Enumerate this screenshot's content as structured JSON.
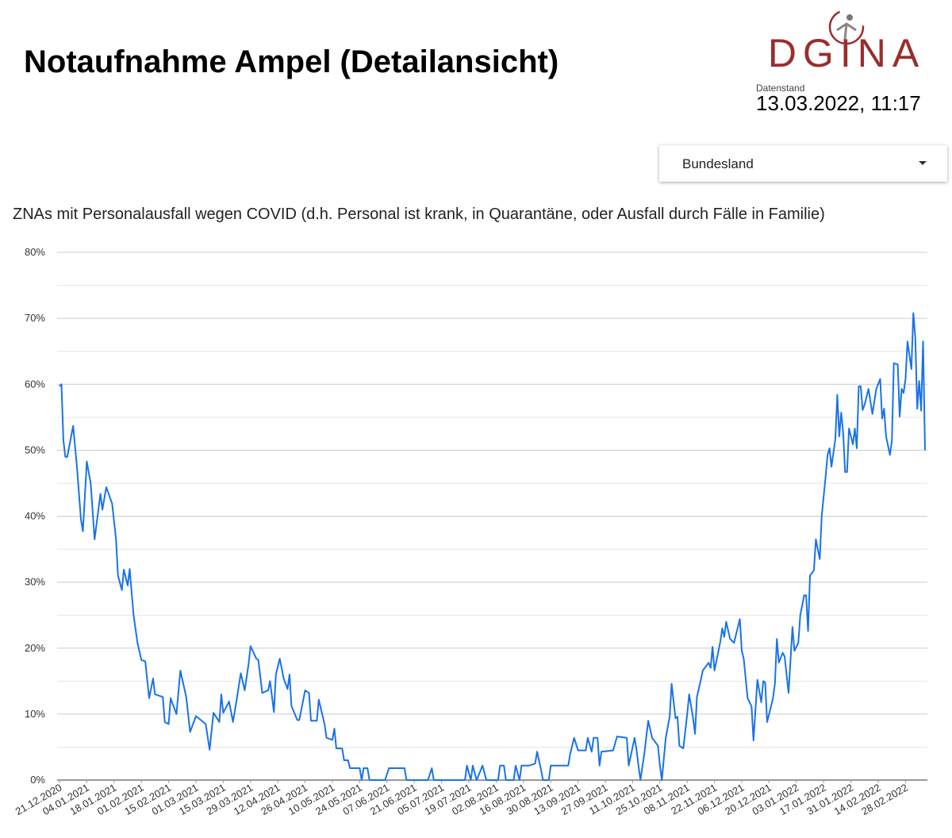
{
  "header": {
    "title": "Notaufnahme Ampel (Detailansicht)",
    "logo": "DGINA",
    "stand_label": "Datenstand",
    "stand_value": "13.03.2022, 11:17"
  },
  "filter": {
    "label": "Bundesland"
  },
  "chart_data": {
    "type": "line",
    "title": "ZNAs mit Personalausfall wegen COVID (d.h. Personal ist krank, in Quarantäne, oder Ausfall durch Fälle in Familie)",
    "xlim": [
      "21.12.2020",
      "10.03.2022"
    ],
    "xticks": [
      "21.12.2020",
      "04.01.2021",
      "18.01.2021",
      "01.02.2021",
      "15.02.2021",
      "01.03.2021",
      "15.03.2021",
      "29.03.2021",
      "12.04.2021",
      "26.04.2021",
      "10.05.2021",
      "24.05.2021",
      "07.06.2021",
      "21.06.2021",
      "05.07.2021",
      "19.07.2021",
      "02.08.2021",
      "16.08.2021",
      "30.08.2021",
      "13.09.2021",
      "27.09.2021",
      "11.10.2021",
      "25.10.2021",
      "08.11.2021",
      "22.11.2021",
      "06.12.2021",
      "20.12.2021",
      "03.01.2022",
      "17.01.2022",
      "31.01.2022",
      "14.02.2022",
      "28.02.2022"
    ],
    "ylim": [
      0,
      80
    ],
    "yticks": [
      {
        "value": 0,
        "label": "0%"
      },
      {
        "value": 10,
        "label": "10%"
      },
      {
        "value": 20,
        "label": "20%"
      },
      {
        "value": 30,
        "label": "30%"
      },
      {
        "value": 40,
        "label": "40%"
      },
      {
        "value": 50,
        "label": "50%"
      },
      {
        "value": 60,
        "label": "60%"
      },
      {
        "value": 70,
        "label": "70%"
      },
      {
        "value": 80,
        "label": "80%"
      }
    ],
    "yminor": [
      5,
      15,
      25,
      35,
      45,
      55,
      65,
      75
    ],
    "grid": true,
    "color": "#1a73e8",
    "x": [
      "21.12.2020",
      "22.12.2020",
      "23.12.2020",
      "24.12.2020",
      "25.12.2020",
      "28.12.2020",
      "30.12.2020",
      "01.01.2021",
      "02.01.2021",
      "04.01.2021",
      "06.01.2021",
      "08.01.2021",
      "11.01.2021",
      "12.01.2021",
      "14.01.2021",
      "17.01.2021",
      "19.01.2021",
      "20.01.2021",
      "22.01.2021",
      "23.01.2021",
      "25.01.2021",
      "26.01.2021",
      "28.01.2021",
      "30.01.2021",
      "01.02.2021",
      "03.02.2021",
      "05.02.2021",
      "07.02.2021",
      "08.02.2021",
      "12.02.2021",
      "13.02.2021",
      "15.02.2021",
      "16.02.2021",
      "19.02.2021",
      "21.02.2021",
      "24.02.2021",
      "26.02.2021",
      "01.03.2021",
      "06.03.2021",
      "08.03.2021",
      "10.03.2021",
      "13.03.2021",
      "14.03.2021",
      "15.03.2021",
      "18.03.2021",
      "20.03.2021",
      "22.03.2021",
      "24.03.2021",
      "26.03.2021",
      "28.03.2021",
      "29.03.2021",
      "01.04.2021",
      "02.04.2021",
      "04.04.2021",
      "07.04.2021",
      "08.04.2021",
      "10.04.2021",
      "11.04.2021",
      "13.04.2021",
      "15.04.2021",
      "17.04.2021",
      "18.04.2021",
      "19.04.2021",
      "22.04.2021",
      "23.04.2021",
      "26.04.2021",
      "28.04.2021",
      "29.04.2021",
      "02.05.2021",
      "03.05.2021",
      "06.05.2021",
      "07.05.2021",
      "10.05.2021",
      "11.05.2021",
      "12.05.2021",
      "15.05.2021",
      "16.05.2021",
      "18.05.2021",
      "19.05.2021",
      "24.05.2021",
      "25.05.2021",
      "26.05.2021",
      "28.05.2021",
      "29.05.2021",
      "06.06.2021",
      "08.06.2021",
      "16.06.2021",
      "17.06.2021",
      "28.06.2021",
      "30.06.2021",
      "01.07.2021",
      "17.07.2021",
      "18.07.2021",
      "20.07.2021",
      "21.07.2021",
      "23.07.2021",
      "26.07.2021",
      "28.07.2021",
      "03.08.2021",
      "04.08.2021",
      "06.08.2021",
      "07.08.2021",
      "11.08.2021",
      "12.08.2021",
      "14.08.2021",
      "15.08.2021",
      "19.08.2021",
      "22.08.2021",
      "23.08.2021",
      "25.08.2021",
      "26.08.2021",
      "29.08.2021",
      "30.08.2021",
      "08.09.2021",
      "09.09.2021",
      "11.09.2021",
      "13.09.2021",
      "17.09.2021",
      "18.09.2021",
      "20.09.2021",
      "21.09.2021",
      "23.09.2021",
      "24.09.2021",
      "25.09.2021",
      "01.10.2021",
      "03.10.2021",
      "08.10.2021",
      "09.10.2021",
      "12.10.2021",
      "13.10.2021",
      "14.10.2021",
      "15.10.2021",
      "17.10.2021",
      "19.10.2021",
      "21.10.2021",
      "24.10.2021",
      "25.10.2021",
      "26.10.2021",
      "28.10.2021",
      "30.10.2021",
      "31.10.2021",
      "02.11.2021",
      "03.11.2021",
      "04.11.2021",
      "06.11.2021",
      "08.11.2021",
      "09.11.2021",
      "11.11.2021",
      "12.11.2021",
      "13.11.2021",
      "15.11.2021",
      "16.11.2021",
      "19.11.2021",
      "20.11.2021",
      "21.11.2021",
      "22.11.2021",
      "25.11.2021",
      "26.11.2021",
      "27.11.2021",
      "28.11.2021",
      "30.11.2021",
      "02.12.2021",
      "05.12.2021",
      "06.12.2021",
      "07.12.2021",
      "09.12.2021",
      "11.12.2021",
      "12.12.2021",
      "14.12.2021",
      "16.12.2021",
      "17.12.2021",
      "18.12.2021",
      "19.12.2021",
      "22.12.2021",
      "23.12.2021",
      "24.12.2021",
      "25.12.2021",
      "27.12.2021",
      "28.12.2021",
      "30.12.2021",
      "01.01.2022",
      "02.01.2022",
      "04.01.2022",
      "05.01.2022",
      "07.01.2022",
      "08.01.2022",
      "09.01.2022",
      "10.01.2022",
      "12.01.2022",
      "13.01.2022",
      "15.01.2022",
      "16.01.2022",
      "18.01.2022",
      "19.01.2022",
      "20.01.2022",
      "21.01.2022",
      "23.01.2022",
      "24.01.2022",
      "25.01.2022",
      "26.01.2022",
      "27.01.2022",
      "28.01.2022",
      "29.01.2022",
      "30.01.2022",
      "01.02.2022",
      "02.02.2022",
      "03.02.2022",
      "04.02.2022",
      "05.02.2022",
      "06.02.2022",
      "07.02.2022",
      "09.02.2022",
      "11.02.2022",
      "13.02.2022",
      "15.02.2022",
      "16.02.2022",
      "17.02.2022",
      "18.02.2022",
      "20.02.2022",
      "21.02.2022",
      "22.02.2022",
      "24.02.2022",
      "25.02.2022",
      "26.02.2022",
      "27.02.2022",
      "28.02.2022",
      "01.03.2022",
      "03.03.2022",
      "04.03.2022",
      "05.03.2022",
      "06.03.2022",
      "07.03.2022",
      "08.03.2022",
      "09.03.2022",
      "10.03.2022"
    ],
    "values": [
      59.7,
      60,
      51.5,
      49,
      49,
      53.7,
      47.3,
      39.5,
      37.7,
      48.3,
      45,
      36.5,
      43.4,
      41,
      44.4,
      41.9,
      36.5,
      31,
      28.8,
      31.9,
      29.5,
      32,
      25,
      20.8,
      18.2,
      18,
      12.4,
      15.4,
      13,
      12.6,
      8.8,
      8.5,
      12.4,
      10,
      16.6,
      12.6,
      7.3,
      9.7,
      8.5,
      4.6,
      10.2,
      8.8,
      13,
      10.2,
      11.9,
      8.8,
      12.4,
      16.2,
      13.6,
      17.6,
      20.3,
      18.4,
      18.2,
      13.2,
      13.6,
      15,
      10.3,
      16,
      18.4,
      15.4,
      13.8,
      16,
      11.2,
      9.1,
      9.1,
      13.6,
      13.2,
      9,
      9,
      12.2,
      8.4,
      6.4,
      6.1,
      7.8,
      4.8,
      4.8,
      3,
      3,
      1.8,
      1.8,
      0,
      1.8,
      1.8,
      0,
      0,
      1.8,
      1.8,
      0,
      0,
      1.8,
      0,
      0,
      2.2,
      0,
      2.2,
      0,
      2.2,
      0,
      0,
      2.2,
      2.2,
      0,
      0,
      2.2,
      0,
      2.2,
      2.2,
      2.5,
      4.3,
      1.6,
      0,
      0,
      2.2,
      2.2,
      4,
      6.4,
      4.5,
      4.5,
      6.4,
      4.3,
      6.4,
      6.4,
      2.2,
      4.3,
      4.5,
      6.6,
      6.4,
      2.2,
      6.4,
      4.6,
      2.2,
      0,
      4,
      9,
      6.4,
      5.2,
      2.2,
      0,
      6.4,
      9.6,
      14.6,
      9.4,
      9.6,
      5.2,
      4.8,
      10,
      13,
      9.4,
      7,
      12.6,
      15.2,
      16.6,
      17.8,
      17,
      20.2,
      16.6,
      21,
      23,
      21.7,
      24,
      21.4,
      20.8,
      24.4,
      19.6,
      18.4,
      12.4,
      11.2,
      6,
      15.2,
      11.8,
      15,
      14.8,
      8.8,
      12.4,
      14.6,
      21.4,
      17.8,
      19.3,
      18.7,
      13.2,
      23.2,
      19.6,
      20.8,
      25,
      28,
      28,
      22.6,
      31,
      31.8,
      36.5,
      33.5,
      40,
      46,
      49.3,
      50.3,
      47.5,
      51.7,
      58.4,
      52.1,
      55.7,
      52.7,
      46.7,
      46.7,
      53.3,
      50.9,
      53.3,
      50.3,
      59.7,
      59.7,
      56.1,
      56.9,
      59.3,
      55.5,
      59.3,
      60.8,
      54.8,
      56.3,
      52.1,
      49.3,
      51.5,
      63.2,
      63,
      55.1,
      59.3,
      58.7,
      60.8,
      66.5,
      62.3,
      70.8,
      67.1,
      56.3,
      60.5,
      56,
      66.5,
      50
    ]
  }
}
